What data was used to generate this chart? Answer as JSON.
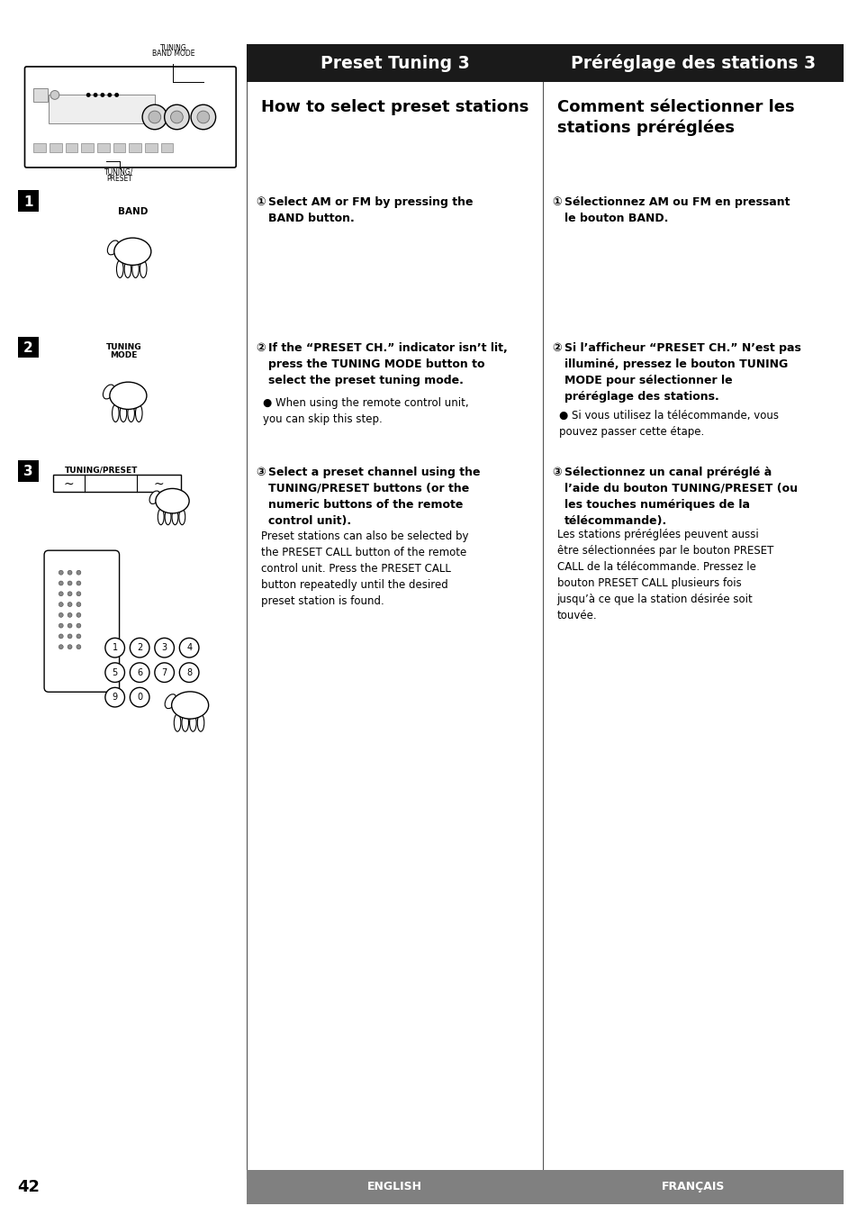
{
  "bg_color": "#ffffff",
  "page_number": "42",
  "header_left_bg": "#1a1a1a",
  "header_right_bg": "#1a1a1a",
  "footer_bg": "#808080",
  "header_left_text": "Preset Tuning 3",
  "header_right_text": "Préréglage des stations 3",
  "section_title_en": "How to select preset stations",
  "section_title_fr": "Comment sélectionner les\nstations préréglées",
  "step1_en_bold": "Select AM or FM by pressing the\nBAND button.",
  "step1_fr_bold": "Sélectionnez AM ou FM en pressant\nle bouton BAND.",
  "step2_en_bold": "If the “PRESET CH.” indicator isn’t lit,\npress the TUNING MODE button to\nselect the preset tuning mode.",
  "step2_en_bullet": "When using the remote control unit,\nyou can skip this step.",
  "step2_fr_bold": "Si l’afficheur “PRESET CH.” N’est pas\nilluminé, pressez le bouton TUNING\nMODE pour sélectionner le\npréréglage des stations.",
  "step2_fr_bullet": "Si vous utilisez la télécommande, vous\npouvez passer cette étape.",
  "step3_en_bold": "Select a preset channel using the\nTUNING/PRESET buttons (or the\nnumeric buttons of the remote\ncontrol unit).",
  "step3_en_normal": "Preset stations can also be selected by\nthe PRESET CALL button of the remote\ncontrol unit. Press the PRESET CALL\nbutton repeatedly until the desired\npreset station is found.",
  "step3_fr_bold": "Sélectionnez un canal préréglé à\nl’aide du bouton TUNING/PRESET (ou\nles touches numériques de la\ntélécommande).",
  "step3_fr_normal": "Les stations préréglées peuvent aussi\nêtre sélectionnées par le bouton PRESET\nCALL de la télécommande. Pressez le\nbouton PRESET CALL plusieurs fois\njusqu’à ce que la station désirée soit\ntouvée.",
  "footer_en": "ENGLISH",
  "footer_fr": "FRANÇAIS"
}
